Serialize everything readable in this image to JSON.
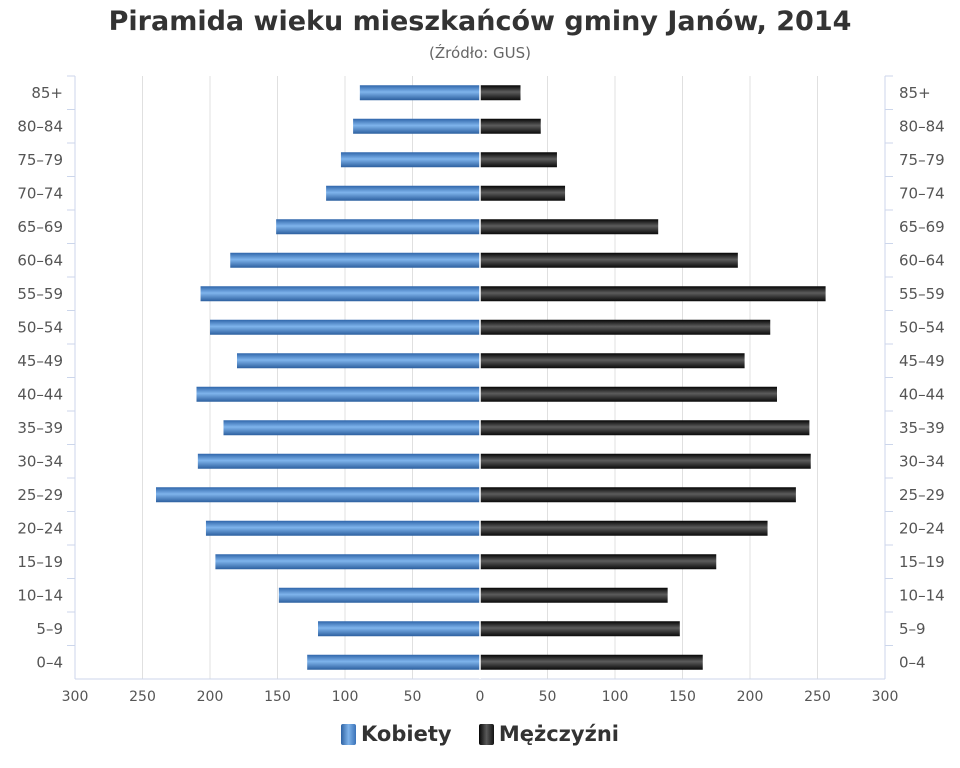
{
  "chart_data": {
    "type": "bar",
    "orientation": "horizontal",
    "title": "Piramida wieku mieszkańców gminy Janów, 2014",
    "subtitle": "(Źródło: GUS)",
    "categories": [
      "0–4",
      "5–9",
      "10–14",
      "15–19",
      "20–24",
      "25–29",
      "30–34",
      "35–39",
      "40–44",
      "45–49",
      "50–54",
      "55–59",
      "60–64",
      "65–69",
      "70–74",
      "75–79",
      "80–84",
      "85+"
    ],
    "series": [
      {
        "name": "Kobiety",
        "color": "#4a86cc",
        "side": "left",
        "values": [
          128,
          120,
          149,
          196,
          203,
          240,
          209,
          190,
          210,
          180,
          200,
          207,
          185,
          151,
          114,
          103,
          94,
          89
        ]
      },
      {
        "name": "Mężczyźni",
        "color": "#1a1a1a",
        "side": "right",
        "values": [
          165,
          148,
          139,
          175,
          213,
          234,
          245,
          244,
          220,
          196,
          215,
          256,
          191,
          132,
          63,
          57,
          45,
          30
        ]
      }
    ],
    "xlim": [
      -300,
      300
    ],
    "x_ticks": [
      "300",
      "250",
      "200",
      "150",
      "100",
      "50",
      "0",
      "50",
      "100",
      "150",
      "200",
      "250",
      "300"
    ],
    "grid": true,
    "legend_position": "bottom"
  }
}
